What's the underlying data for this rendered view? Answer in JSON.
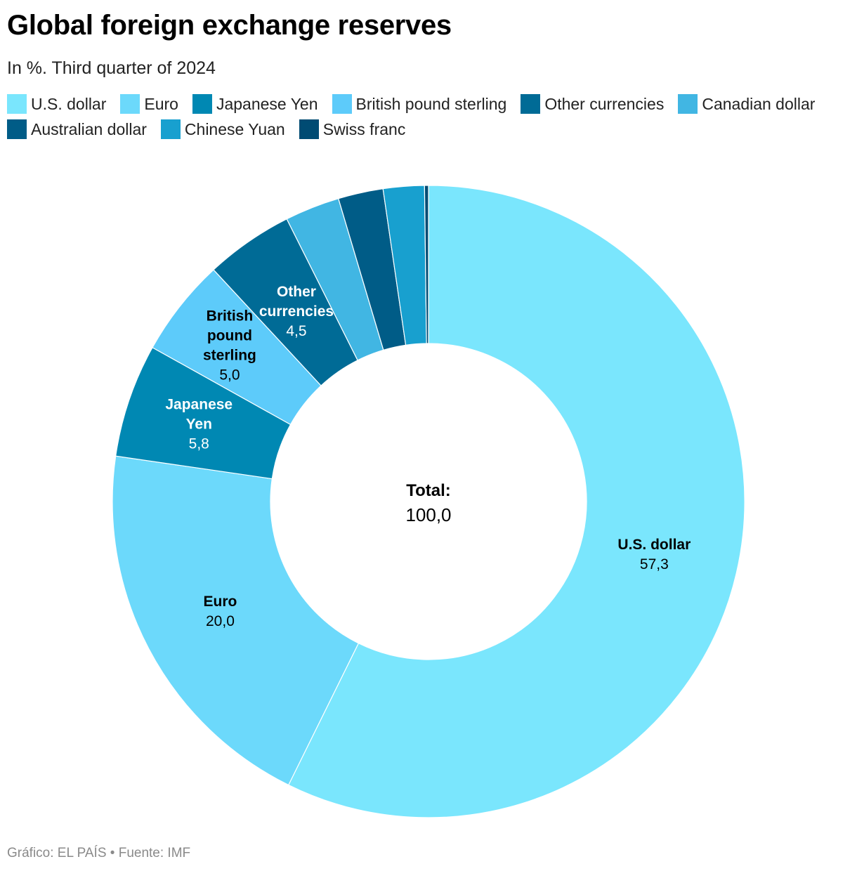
{
  "header": {
    "title": "Global foreign exchange reserves",
    "subtitle": "In %. Third quarter of 2024"
  },
  "footer": {
    "source": "Gráfico: EL PAÍS • Fuente: IMF"
  },
  "chart_data": {
    "type": "pie",
    "variant": "donut",
    "legend_position": "top",
    "center_label": "Total:",
    "center_value": "100,0",
    "slices": [
      {
        "name": "U.S. dollar",
        "value": 57.3,
        "label": "57,3",
        "color": "#7ae6fd",
        "label_dark": true
      },
      {
        "name": "Euro",
        "value": 20.0,
        "label": "20,0",
        "color": "#6cd9fb",
        "label_dark": true
      },
      {
        "name": "Japanese Yen",
        "value": 5.8,
        "label": "5,8",
        "color": "#0088b3",
        "label_dark": false
      },
      {
        "name": "British pound sterling",
        "value": 5.0,
        "label": "5,0",
        "color": "#5dcbfa",
        "label_dark": true
      },
      {
        "name": "Other currencies",
        "value": 4.5,
        "label": "4,5",
        "color": "#006b96",
        "label_dark": false
      },
      {
        "name": "Canadian dollar",
        "value": 2.8,
        "label": "",
        "color": "#41b6e3",
        "label_dark": true
      },
      {
        "name": "Australian dollar",
        "value": 2.3,
        "label": "",
        "color": "#005c87",
        "label_dark": false
      },
      {
        "name": "Chinese Yuan",
        "value": 2.1,
        "label": "",
        "color": "#18a0cf",
        "label_dark": false
      },
      {
        "name": "Swiss franc",
        "value": 0.2,
        "label": "",
        "color": "#004b73",
        "label_dark": false
      }
    ]
  }
}
